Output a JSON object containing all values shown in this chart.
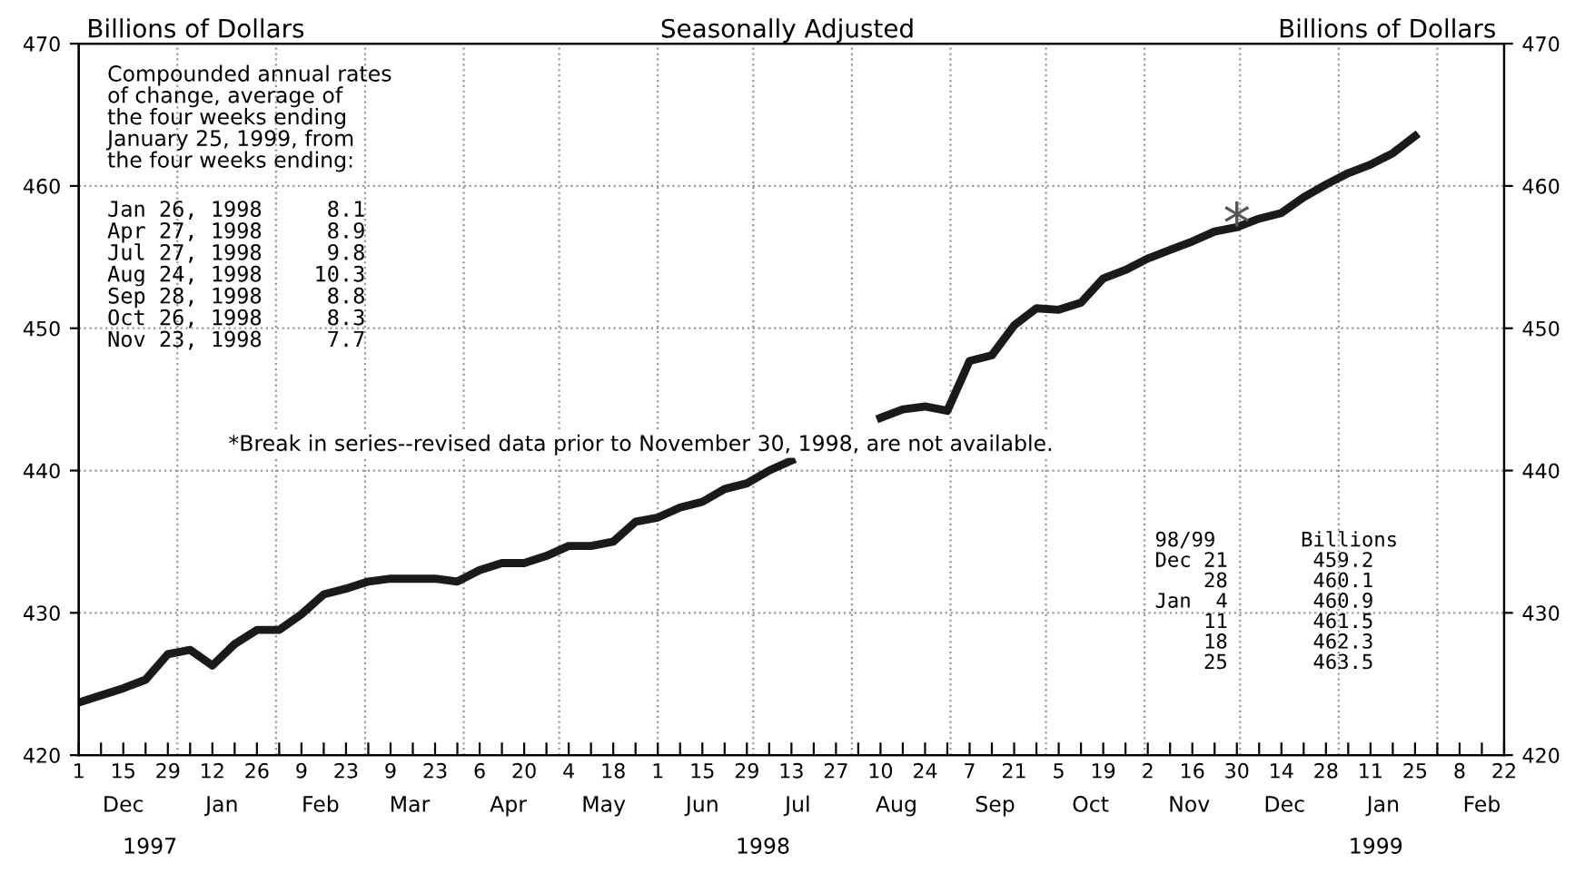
{
  "chart_data": {
    "type": "line",
    "subtitle": "Seasonally Adjusted",
    "ylabel": "Billions of Dollars",
    "y2label": "Billions of Dollars",
    "x": [
      "1997-12-01",
      "1997-12-08",
      "1997-12-15",
      "1997-12-22",
      "1997-12-29",
      "1998-01-05",
      "1998-01-12",
      "1998-01-19",
      "1998-01-26",
      "1998-02-02",
      "1998-02-09",
      "1998-02-16",
      "1998-02-23",
      "1998-03-02",
      "1998-03-09",
      "1998-03-16",
      "1998-03-23",
      "1998-03-30",
      "1998-04-06",
      "1998-04-13",
      "1998-04-20",
      "1998-04-27",
      "1998-05-04",
      "1998-05-11",
      "1998-05-18",
      "1998-05-25",
      "1998-06-01",
      "1998-06-08",
      "1998-06-15",
      "1998-06-22",
      "1998-06-29",
      "1998-07-06",
      "1998-07-13",
      "1998-07-20",
      "1998-07-27",
      "1998-08-03",
      "1998-08-10",
      "1998-08-17",
      "1998-08-24",
      "1998-08-31",
      "1998-09-07",
      "1998-09-14",
      "1998-09-21",
      "1998-09-28",
      "1998-10-05",
      "1998-10-12",
      "1998-10-19",
      "1998-10-26",
      "1998-11-02",
      "1998-11-09",
      "1998-11-16",
      "1998-11-23",
      "1998-11-30",
      "1998-12-07",
      "1998-12-14",
      "1998-12-21",
      "1998-12-28",
      "1999-01-04",
      "1999-01-11",
      "1999-01-18",
      "1999-01-25"
    ],
    "series": [
      {
        "color": "#1a1a1a",
        "values": [
          423.7,
          424.2,
          424.7,
          425.3,
          427.1,
          427.4,
          426.3,
          427.8,
          428.8,
          428.8,
          429.9,
          431.3,
          431.7,
          432.2,
          432.4,
          432.4,
          432.4,
          432.2,
          433.0,
          433.5,
          433.5,
          434.0,
          434.7,
          434.7,
          435.0,
          436.4,
          436.7,
          437.4,
          437.8,
          438.7,
          439.1,
          440.0,
          440.7,
          null,
          null,
          null,
          443.7,
          444.3,
          444.5,
          444.2,
          447.7,
          448.1,
          450.2,
          451.4,
          451.3,
          451.8,
          453.5,
          454.1,
          454.9,
          455.5,
          456.1,
          456.8,
          457.1,
          457.7,
          458.1,
          459.2,
          460.1,
          460.9,
          461.5,
          462.3,
          463.5
        ]
      }
    ],
    "xlim": [
      "1997-12-01",
      "1999-02-22"
    ],
    "xticks": [
      {
        "value": "1997-12-01",
        "label": "1"
      },
      {
        "value": "1997-12-08",
        "label": null
      },
      {
        "value": "1997-12-15",
        "label": "15"
      },
      {
        "value": "1997-12-22",
        "label": null
      },
      {
        "value": "1997-12-29",
        "label": "29"
      },
      {
        "value": "1998-01-05",
        "label": null
      },
      {
        "value": "1998-01-12",
        "label": "12"
      },
      {
        "value": "1998-01-19",
        "label": null
      },
      {
        "value": "1998-01-26",
        "label": "26"
      },
      {
        "value": "1998-02-02",
        "label": null
      },
      {
        "value": "1998-02-09",
        "label": "9"
      },
      {
        "value": "1998-02-16",
        "label": null
      },
      {
        "value": "1998-02-23",
        "label": "23"
      },
      {
        "value": "1998-03-02",
        "label": null
      },
      {
        "value": "1998-03-09",
        "label": "9"
      },
      {
        "value": "1998-03-16",
        "label": null
      },
      {
        "value": "1998-03-23",
        "label": "23"
      },
      {
        "value": "1998-03-30",
        "label": null
      },
      {
        "value": "1998-04-06",
        "label": "6"
      },
      {
        "value": "1998-04-13",
        "label": null
      },
      {
        "value": "1998-04-20",
        "label": "20"
      },
      {
        "value": "1998-04-27",
        "label": null
      },
      {
        "value": "1998-05-04",
        "label": "4"
      },
      {
        "value": "1998-05-11",
        "label": null
      },
      {
        "value": "1998-05-18",
        "label": "18"
      },
      {
        "value": "1998-05-25",
        "label": null
      },
      {
        "value": "1998-06-01",
        "label": "1"
      },
      {
        "value": "1998-06-08",
        "label": null
      },
      {
        "value": "1998-06-15",
        "label": "15"
      },
      {
        "value": "1998-06-22",
        "label": null
      },
      {
        "value": "1998-06-29",
        "label": "29"
      },
      {
        "value": "1998-07-06",
        "label": null
      },
      {
        "value": "1998-07-13",
        "label": "13"
      },
      {
        "value": "1998-07-20",
        "label": null
      },
      {
        "value": "1998-07-27",
        "label": "27"
      },
      {
        "value": "1998-08-03",
        "label": null
      },
      {
        "value": "1998-08-10",
        "label": "10"
      },
      {
        "value": "1998-08-17",
        "label": null
      },
      {
        "value": "1998-08-24",
        "label": "24"
      },
      {
        "value": "1998-08-31",
        "label": null
      },
      {
        "value": "1998-09-07",
        "label": "7"
      },
      {
        "value": "1998-09-14",
        "label": null
      },
      {
        "value": "1998-09-21",
        "label": "21"
      },
      {
        "value": "1998-09-28",
        "label": null
      },
      {
        "value": "1998-10-05",
        "label": "5"
      },
      {
        "value": "1998-10-12",
        "label": null
      },
      {
        "value": "1998-10-19",
        "label": "19"
      },
      {
        "value": "1998-10-26",
        "label": null
      },
      {
        "value": "1998-11-02",
        "label": "2"
      },
      {
        "value": "1998-11-09",
        "label": null
      },
      {
        "value": "1998-11-16",
        "label": "16"
      },
      {
        "value": "1998-11-23",
        "label": null
      },
      {
        "value": "1998-11-30",
        "label": "30"
      },
      {
        "value": "1998-12-07",
        "label": null
      },
      {
        "value": "1998-12-14",
        "label": "14"
      },
      {
        "value": "1998-12-21",
        "label": null
      },
      {
        "value": "1998-12-28",
        "label": "28"
      },
      {
        "value": "1999-01-04",
        "label": null
      },
      {
        "value": "1999-01-11",
        "label": "11"
      },
      {
        "value": "1999-01-18",
        "label": null
      },
      {
        "value": "1999-01-25",
        "label": "25"
      },
      {
        "value": "1999-02-01",
        "label": null
      },
      {
        "value": "1999-02-08",
        "label": "8"
      },
      {
        "value": "1999-02-15",
        "label": null
      },
      {
        "value": "1999-02-22",
        "label": "22"
      }
    ],
    "x2lim": [
      "1997-12-01",
      "1999-02-22"
    ],
    "x2ticks": [
      {
        "value": "1997-12-15",
        "label": "Dec"
      },
      {
        "value": "1998-01-15",
        "label": "Jan"
      },
      {
        "value": "1998-02-15",
        "label": "Feb"
      },
      {
        "value": "1998-03-15",
        "label": "Mar"
      },
      {
        "value": "1998-04-15",
        "label": "Apr"
      },
      {
        "value": "1998-05-15",
        "label": "May"
      },
      {
        "value": "1998-06-15",
        "label": "Jun"
      },
      {
        "value": "1998-07-15",
        "label": "Jul"
      },
      {
        "value": "1998-08-15",
        "label": "Aug"
      },
      {
        "value": "1998-09-15",
        "label": "Sep"
      },
      {
        "value": "1998-10-15",
        "label": "Oct"
      },
      {
        "value": "1998-11-15",
        "label": "Nov"
      },
      {
        "value": "1998-12-15",
        "label": "Dec"
      },
      {
        "value": "1999-01-15",
        "label": "Jan"
      },
      {
        "value": "1999-02-15",
        "label": "Feb"
      }
    ],
    "ylim": [
      420,
      470
    ],
    "yticks": [
      420,
      430,
      440,
      450,
      460,
      470
    ],
    "y2lim": [
      420,
      470
    ],
    "y2ticks": [
      420,
      430,
      440,
      450,
      460,
      470
    ],
    "grid": "y",
    "ref_lines": [
      {
        "axis": "x",
        "value": "1998-01-01",
        "line_style": "dotted",
        "color": "#999999"
      },
      {
        "axis": "x",
        "value": "1998-02-01",
        "line_style": "dotted",
        "color": "#999999"
      },
      {
        "axis": "x",
        "value": "1998-03-01",
        "line_style": "dotted",
        "color": "#999999"
      },
      {
        "axis": "x",
        "value": "1998-04-01",
        "line_style": "dotted",
        "color": "#999999"
      },
      {
        "axis": "x",
        "value": "1998-05-01",
        "line_style": "dotted",
        "color": "#999999"
      },
      {
        "axis": "x",
        "value": "1998-06-01",
        "line_style": "dotted",
        "color": "#999999"
      },
      {
        "axis": "x",
        "value": "1998-07-01",
        "line_style": "dotted",
        "color": "#999999"
      },
      {
        "axis": "x",
        "value": "1998-08-01",
        "line_style": "dotted",
        "color": "#999999"
      },
      {
        "axis": "x",
        "value": "1998-09-01",
        "line_style": "dotted",
        "color": "#999999"
      },
      {
        "axis": "x",
        "value": "1998-10-01",
        "line_style": "dotted",
        "color": "#999999"
      },
      {
        "axis": "x",
        "value": "1998-11-01",
        "line_style": "dotted",
        "color": "#999999"
      },
      {
        "axis": "x",
        "value": "1998-12-01",
        "line_style": "dotted",
        "color": "#999999"
      },
      {
        "axis": "x",
        "value": "1999-01-01",
        "line_style": "dotted",
        "color": "#999999"
      },
      {
        "axis": "x",
        "value": "1999-02-01",
        "line_style": "dotted",
        "color": "#999999"
      }
    ],
    "annotations": [
      "Compounded annual rates\nof change, average of\nthe four weeks ending\nJanuary 25, 1999, from\nthe four weeks ending:",
      "Jan 26, 1998     8.1\nApr 27, 1998     8.9\nJul 27, 1998     9.8\nAug 24, 1998    10.3\nSep 28, 1998     8.8\nOct 26, 1998     8.3\nNov 23, 1998     7.7",
      "*Break in series--revised data prior to November 30, 1998, are not available.",
      "98/99       Billions\nDec 21       459.2\n    28       460.1\nJan  4       460.9\n    11       461.5\n    18       462.3\n    25       463.5",
      "1997",
      "1998",
      "1999",
      {
        "text": "*",
        "x": "1998-11-30",
        "y": 457.1
      }
    ]
  }
}
